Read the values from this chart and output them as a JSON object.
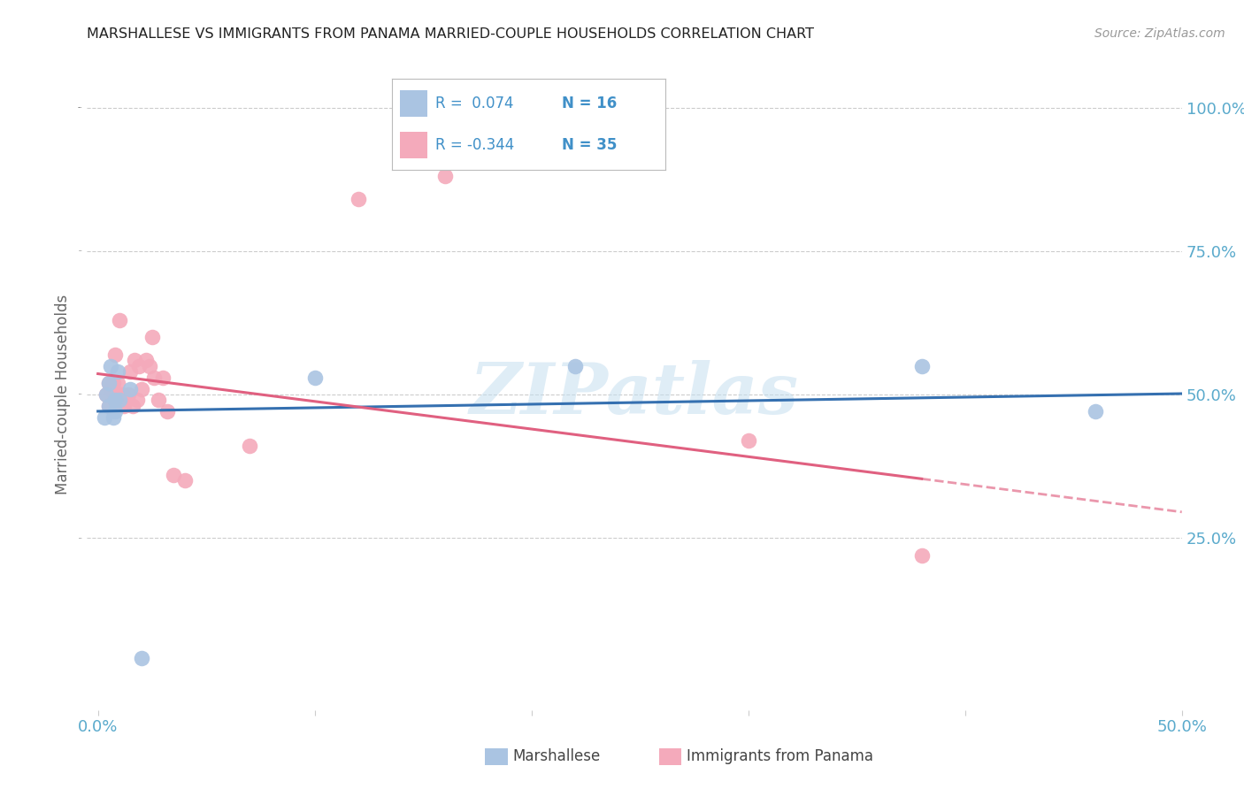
{
  "title": "MARSHALLESE VS IMMIGRANTS FROM PANAMA MARRIED-COUPLE HOUSEHOLDS CORRELATION CHART",
  "source": "Source: ZipAtlas.com",
  "ylabel": "Married-couple Households",
  "xlim": [
    -0.005,
    0.5
  ],
  "ylim": [
    -0.05,
    1.05
  ],
  "marshallese_R": 0.074,
  "marshallese_N": 16,
  "panama_R": -0.344,
  "panama_N": 35,
  "marshallese_color": "#aac4e2",
  "panama_color": "#f4aabb",
  "marshallese_line_color": "#3570b0",
  "panama_line_color": "#e06080",
  "legend_text_color": "#4090c8",
  "axis_tick_color": "#5aaacc",
  "watermark_color": "#c5dff0",
  "marshallese_x": [
    0.003,
    0.004,
    0.005,
    0.005,
    0.006,
    0.007,
    0.008,
    0.008,
    0.009,
    0.01,
    0.015,
    0.02,
    0.1,
    0.22,
    0.38,
    0.46
  ],
  "marshallese_y": [
    0.46,
    0.5,
    0.48,
    0.52,
    0.55,
    0.46,
    0.49,
    0.47,
    0.54,
    0.49,
    0.51,
    0.04,
    0.53,
    0.55,
    0.55,
    0.47
  ],
  "panama_x": [
    0.004,
    0.005,
    0.005,
    0.006,
    0.007,
    0.008,
    0.008,
    0.009,
    0.009,
    0.01,
    0.01,
    0.011,
    0.012,
    0.013,
    0.014,
    0.015,
    0.016,
    0.017,
    0.018,
    0.019,
    0.02,
    0.022,
    0.024,
    0.025,
    0.026,
    0.028,
    0.03,
    0.032,
    0.035,
    0.04,
    0.07,
    0.12,
    0.16,
    0.3,
    0.38
  ],
  "panama_y": [
    0.5,
    0.48,
    0.52,
    0.51,
    0.52,
    0.49,
    0.57,
    0.48,
    0.52,
    0.5,
    0.63,
    0.5,
    0.48,
    0.49,
    0.5,
    0.54,
    0.48,
    0.56,
    0.49,
    0.55,
    0.51,
    0.56,
    0.55,
    0.6,
    0.53,
    0.49,
    0.53,
    0.47,
    0.36,
    0.35,
    0.41,
    0.84,
    0.88,
    0.42,
    0.22
  ],
  "watermark": "ZIPatlas"
}
